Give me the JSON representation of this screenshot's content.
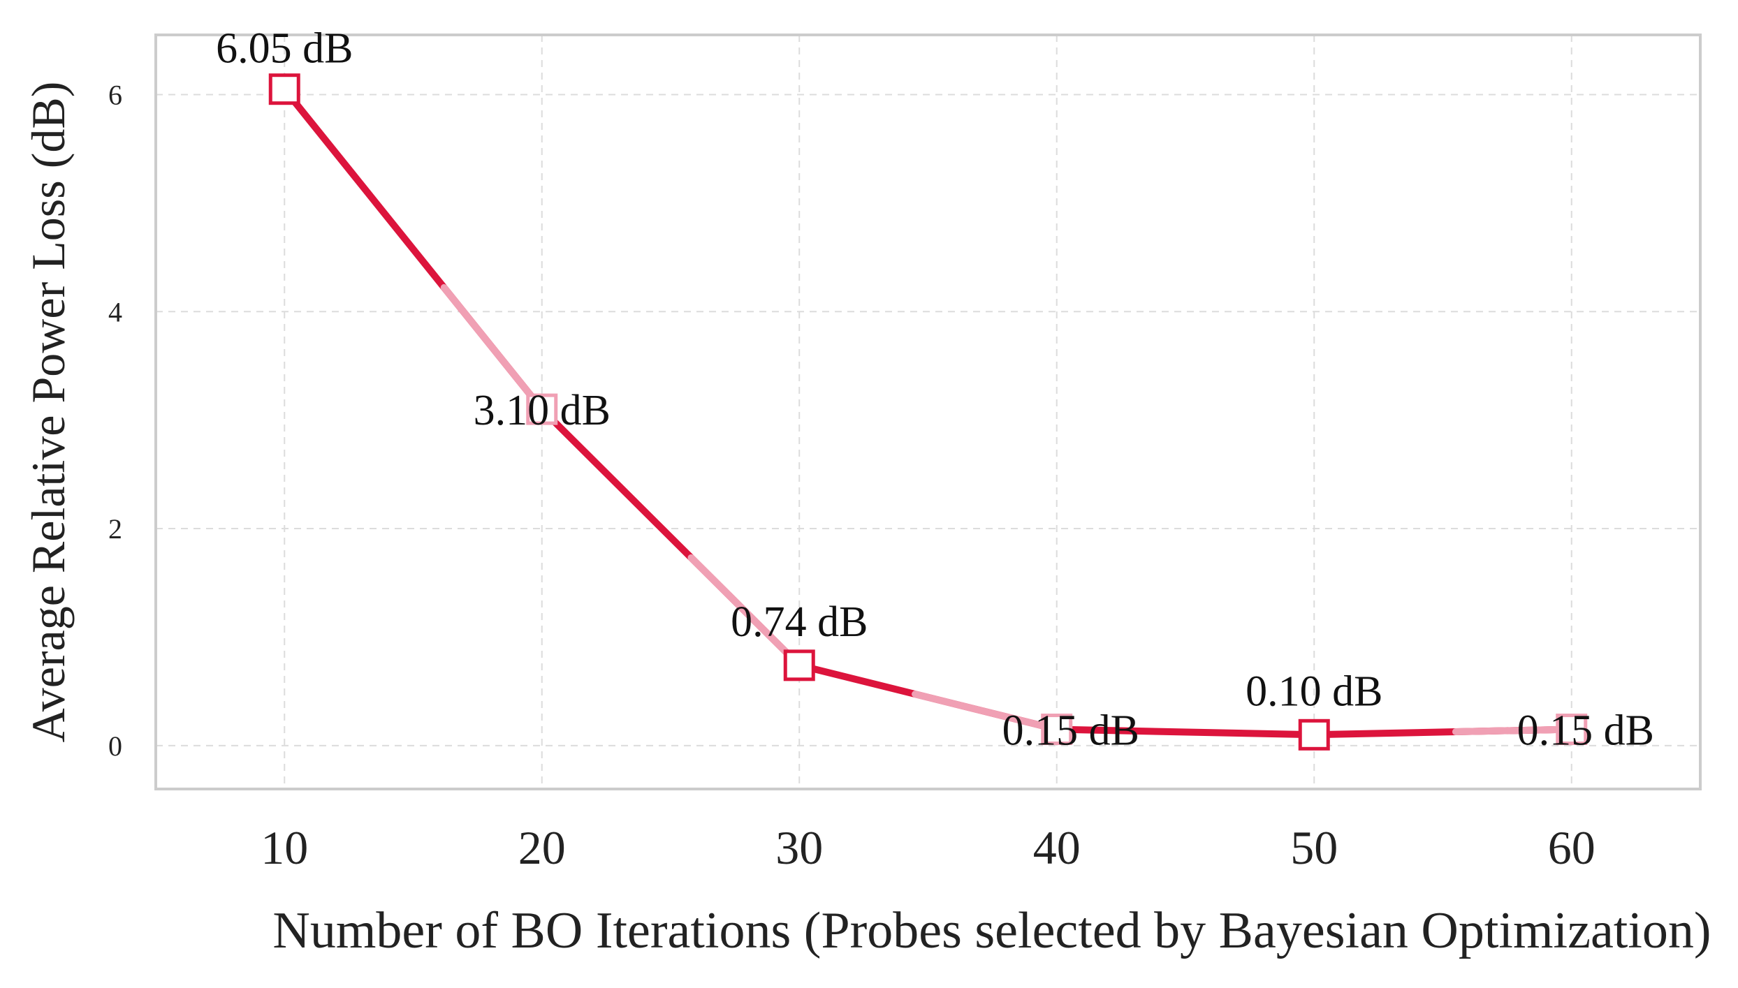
{
  "chart_data": {
    "type": "line",
    "title": "",
    "xlabel": "Number of BO Iterations (Probes selected by Bayesian Optimization)",
    "ylabel": "Average Relative Power Loss (dB)",
    "x": [
      10,
      20,
      30,
      40,
      50,
      60
    ],
    "values": [
      6.05,
      3.1,
      0.74,
      0.15,
      0.1,
      0.15
    ],
    "data_labels": [
      "6.05 dB",
      "3.10 dB",
      "0.74 dB",
      "0.15 dB",
      "0.10 dB",
      "0.15 dB"
    ],
    "xticks": [
      "10",
      "20",
      "30",
      "40",
      "50",
      "60"
    ],
    "yticks": [
      "0",
      "2",
      "4",
      "6"
    ],
    "xlim": [
      5,
      65
    ],
    "ylim": [
      -0.4,
      6.55
    ],
    "grid": true,
    "legend": "none",
    "colors": {
      "line": "#dc143c",
      "alt_segment": "#f0a0b4",
      "frame": "#cccccc",
      "grid": "#dcdcdc"
    },
    "marker": "square-hollow"
  }
}
